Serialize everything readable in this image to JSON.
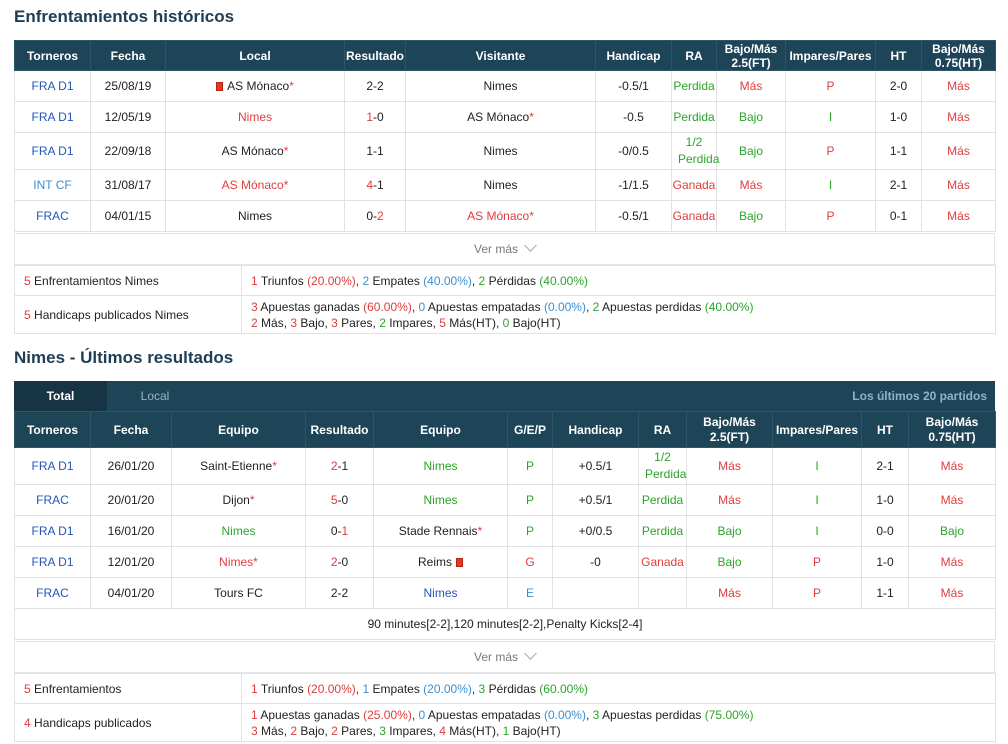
{
  "h2h": {
    "title": "Enfrentamientos históricos",
    "headers": [
      "Torneros",
      "Fecha",
      "Local",
      "Resultado",
      "Visitante",
      "Handicap",
      "RA",
      "Bajo/Más 2.5(FT)",
      "Impares/Pares",
      "HT",
      "Bajo/Más 0.75(HT)"
    ],
    "rows": [
      {
        "league": "FRA D1",
        "date": "25/08/19",
        "home": "AS Mónaco",
        "res_h": "2",
        "res_a": "2",
        "away": "Nimes",
        "hcap": "-0.5/1",
        "ra": "Perdida",
        "ou": "Más",
        "op": "P",
        "ht": "2-0",
        "ou2": "Más"
      },
      {
        "league": "FRA D1",
        "date": "12/05/19",
        "home": "Nimes",
        "res_h": "1",
        "res_a": "0",
        "away": "AS Mónaco",
        "hcap": "-0.5",
        "ra": "Perdida",
        "ou": "Bajo",
        "op": "I",
        "ht": "1-0",
        "ou2": "Más"
      },
      {
        "league": "FRA D1",
        "date": "22/09/18",
        "home": "AS Mónaco",
        "res_h": "1",
        "res_a": "1",
        "away": "Nimes",
        "hcap": "-0/0.5",
        "ra": "1/2 Perdida",
        "ou": "Bajo",
        "op": "P",
        "ht": "1-1",
        "ou2": "Más"
      },
      {
        "league": "INT CF",
        "date": "31/08/17",
        "home": "AS Mónaco",
        "res_h": "4",
        "res_a": "1",
        "away": "Nimes",
        "hcap": "-1/1.5",
        "ra": "Ganada",
        "ou": "Más",
        "op": "I",
        "ht": "2-1",
        "ou2": "Más"
      },
      {
        "league": "FRAC",
        "date": "04/01/15",
        "home": "Nimes",
        "res_h": "0",
        "res_a": "2",
        "away": "AS Mónaco",
        "hcap": "-0.5/1",
        "ra": "Ganada",
        "ou": "Bajo",
        "op": "P",
        "ht": "0-1",
        "ou2": "Más"
      }
    ],
    "more": "Ver más",
    "summary1_label": "Enfrentamientos Nimes",
    "summary1_count": "5",
    "s1": {
      "w": "1",
      "w_lbl": "Triunfos",
      "w_pct": "(20.00%)",
      "d": "2",
      "d_lbl": "Empates",
      "d_pct": "(40.00%)",
      "l": "2",
      "l_lbl": "Pérdidas",
      "l_pct": "(40.00%)"
    },
    "summary2_label": "Handicaps publicados Nimes",
    "summary2_count": "5",
    "s2": {
      "g": "3",
      "g_lbl": "Apuestas ganadas",
      "g_pct": "(60.00%)",
      "e": "0",
      "e_lbl": "Apuestas empatadas",
      "e_pct": "(0.00%)",
      "p": "2",
      "p_lbl": "Apuestas perdidas",
      "p_pct": "(40.00%)",
      "mas": "2",
      "mas_lbl": "Más,",
      "bajo": "3",
      "bajo_lbl": "Bajo,",
      "pares": "3",
      "pares_lbl": "Pares,",
      "imp": "2",
      "imp_lbl": "Impares,",
      "masht": "5",
      "masht_lbl": "Más(HT),",
      "bajoht": "0",
      "bajoht_lbl": "Bajo(HT)"
    }
  },
  "recent": {
    "title": "Nimes - Últimos resultados",
    "tab_total": "Total",
    "tab_local": "Local",
    "tab_right": "Los últimos 20 partidos",
    "headers": [
      "Torneros",
      "Fecha",
      "Equipo",
      "Resultado",
      "Equipo",
      "G/E/P",
      "Handicap",
      "RA",
      "Bajo/Más 2.5(FT)",
      "Impares/Pares",
      "HT",
      "Bajo/Más 0.75(HT)"
    ],
    "rows": [
      {
        "league": "FRA D1",
        "date": "26/01/20",
        "home": "Saint-Etienne",
        "res_h": "2",
        "res_a": "1",
        "away": "Nimes",
        "gep": "P",
        "hcap": "+0.5/1",
        "ra": "1/2 Perdida",
        "ou": "Más",
        "op": "I",
        "ht": "2-1",
        "ou2": "Más"
      },
      {
        "league": "FRAC",
        "date": "20/01/20",
        "home": "Dijon",
        "res_h": "5",
        "res_a": "0",
        "away": "Nimes",
        "gep": "P",
        "hcap": "+0.5/1",
        "ra": "Perdida",
        "ou": "Más",
        "op": "I",
        "ht": "1-0",
        "ou2": "Más"
      },
      {
        "league": "FRA D1",
        "date": "16/01/20",
        "home": "Nimes",
        "res_h": "0",
        "res_a": "1",
        "away": "Stade Rennais",
        "gep": "P",
        "hcap": "+0/0.5",
        "ra": "Perdida",
        "ou": "Bajo",
        "op": "I",
        "ht": "0-0",
        "ou2": "Bajo"
      },
      {
        "league": "FRA D1",
        "date": "12/01/20",
        "home": "Nimes",
        "res_h": "2",
        "res_a": "0",
        "away": "Reims",
        "gep": "G",
        "hcap": "-0",
        "ra": "Ganada",
        "ou": "Bajo",
        "op": "P",
        "ht": "1-0",
        "ou2": "Más"
      },
      {
        "league": "FRAC",
        "date": "04/01/20",
        "home": "Tours FC",
        "res_h": "2",
        "res_a": "2",
        "away": "Nimes",
        "gep": "E",
        "hcap": "",
        "ra": "",
        "ou": "Más",
        "op": "P",
        "ht": "1-1",
        "ou2": "Más"
      }
    ],
    "note": "90 minutes[2-2],120 minutes[2-2],Penalty Kicks[2-4]",
    "more": "Ver más",
    "summary1_label": "Enfrentamientos",
    "summary1_count": "5",
    "s1": {
      "w": "1",
      "w_lbl": "Triunfos",
      "w_pct": "(20.00%)",
      "d": "1",
      "d_lbl": "Empates",
      "d_pct": "(20.00%)",
      "l": "3",
      "l_lbl": "Pérdidas",
      "l_pct": "(60.00%)"
    },
    "summary2_label": "Handicaps publicados",
    "summary2_count": "4",
    "s2": {
      "g": "1",
      "g_lbl": "Apuestas ganadas",
      "g_pct": "(25.00%)",
      "e": "0",
      "e_lbl": "Apuestas empatadas",
      "e_pct": "(0.00%)",
      "p": "3",
      "p_lbl": "Apuestas perdidas",
      "p_pct": "(75.00%)",
      "mas": "3",
      "mas_lbl": "Más,",
      "bajo": "2",
      "bajo_lbl": "Bajo,",
      "pares": "2",
      "pares_lbl": "Pares,",
      "imp": "3",
      "imp_lbl": "Impares,",
      "masht": "4",
      "masht_lbl": "Más(HT),",
      "bajoht": "1",
      "bajoht_lbl": "Bajo(HT)"
    }
  },
  "colors": {
    "header_bg": "#1e4457",
    "red": "#e13c3c",
    "green": "#2aa52a",
    "blue": "#2456b8"
  }
}
